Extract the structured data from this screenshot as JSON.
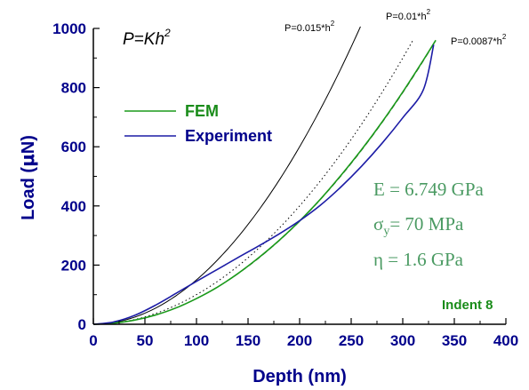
{
  "chart_data": {
    "type": "line",
    "xlabel": "Depth (nm)",
    "ylabel_parts": [
      "Load (",
      "μ",
      "N)"
    ],
    "xlim": [
      0,
      400
    ],
    "ylim": [
      0,
      1000
    ],
    "x_ticks": [
      "0",
      "50",
      "100",
      "150",
      "200",
      "250",
      "300",
      "350",
      "400"
    ],
    "y_ticks": [
      "0",
      "200",
      "400",
      "600",
      "800",
      "1000"
    ],
    "grid": false,
    "model_label": {
      "text": "P=Kh",
      "sup": "2"
    },
    "power_laws": [
      {
        "label": "P=0.015*h",
        "sup": "2",
        "k": 0.015,
        "h_max": 259,
        "style": "solid"
      },
      {
        "label": "P=0.01*h",
        "sup": "2",
        "k": 0.01,
        "h_max": 310,
        "style": "dotted"
      },
      {
        "label": "P=0.0087*h",
        "sup": "2",
        "k": 0.0087,
        "h_max": 330,
        "style": "dashed"
      }
    ],
    "series": [
      {
        "name": "FEM",
        "color": "#1a9a1a",
        "x": [
          0,
          20,
          40,
          60,
          80,
          100,
          120,
          140,
          160,
          180,
          200,
          220,
          240,
          260,
          280,
          300,
          320,
          332
        ],
        "y": [
          0,
          4,
          14,
          31,
          55,
          87,
          125,
          171,
          224,
          283,
          349,
          422,
          503,
          590,
          684,
          785,
          893,
          960
        ]
      },
      {
        "name": "Experiment",
        "color": "#1c1ca6",
        "x": [
          0,
          20,
          40,
          60,
          80,
          100,
          120,
          140,
          160,
          180,
          200,
          220,
          240,
          260,
          280,
          300,
          320,
          330
        ],
        "y": [
          0,
          8,
          30,
          64,
          104,
          145,
          185,
          225,
          264,
          305,
          350,
          402,
          464,
          534,
          612,
          698,
          793,
          945
        ]
      }
    ],
    "annotations": [
      {
        "text": "E = 6.749 GPa"
      },
      {
        "text": "σ",
        "sub": "y",
        "suffix": "= 70 MPa"
      },
      {
        "text": "η = 1.6 GPa"
      }
    ],
    "indent_label": "Indent 8",
    "colors": {
      "axis": "#00008b",
      "annotation": "#4a9a62",
      "indent": "#1a8c1a",
      "fem": "#1a9a1a",
      "experiment": "#1c1ca6"
    }
  }
}
